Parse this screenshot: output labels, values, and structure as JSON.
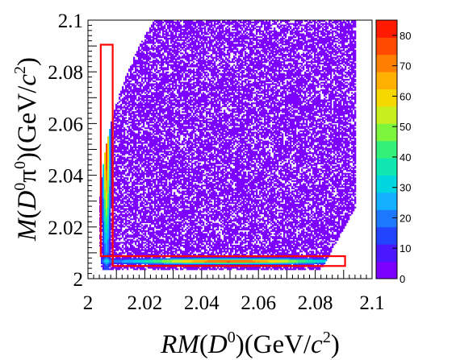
{
  "chart_data": {
    "type": "heatmap",
    "xlabel": {
      "pre": "RM",
      "paren_open": "(",
      "particle": "D",
      "sup": "0",
      "paren_close": ")",
      "unit_pre": "(GeV/",
      "unit_c": "c",
      "unit_sup": "2",
      "unit_post": ")"
    },
    "ylabel": {
      "pre": "M",
      "paren_open": "(",
      "particle": "D",
      "sup": "0",
      "pi": "π",
      "sup2": "0",
      "paren_close": ")",
      "unit_pre": "(GeV/",
      "unit_c": "c",
      "unit_sup": "2",
      "unit_post": ")"
    },
    "xlim": [
      2.0,
      2.1
    ],
    "ylim": [
      2.0,
      2.1
    ],
    "zlim": [
      0,
      85
    ],
    "x_ticks": [
      "2",
      "2.02",
      "2.04",
      "2.06",
      "2.08",
      "2.1"
    ],
    "y_ticks": [
      "2",
      "2.02",
      "2.04",
      "2.06",
      "2.08",
      "2.1"
    ],
    "x_tick_values": [
      2.0,
      2.02,
      2.04,
      2.06,
      2.08,
      2.1
    ],
    "y_tick_values": [
      2.0,
      2.02,
      2.04,
      2.06,
      2.08,
      2.1
    ],
    "z_ticks": [
      "0",
      "10",
      "20",
      "30",
      "40",
      "50",
      "60",
      "70",
      "80"
    ],
    "z_tick_values": [
      0,
      10,
      20,
      30,
      40,
      50,
      60,
      70,
      80
    ],
    "signal_boxes": [
      {
        "x0": 2.0045,
        "x1": 2.0087,
        "y0": 2.0087,
        "y1": 2.0905,
        "color": "#ff0000"
      },
      {
        "x0": 2.0087,
        "x1": 2.0905,
        "y0": 2.0049,
        "y1": 2.0087,
        "color": "#ff0000"
      }
    ],
    "palette": [
      "#7c00ff",
      "#4a18ff",
      "#2244ff",
      "#1b78ff",
      "#12b0ff",
      "#00d6e0",
      "#10e6b0",
      "#33f07a",
      "#7df53c",
      "#c8ee20",
      "#f4d800",
      "#ffb000",
      "#ff8000",
      "#ff4a00",
      "#ff1a00"
    ]
  }
}
